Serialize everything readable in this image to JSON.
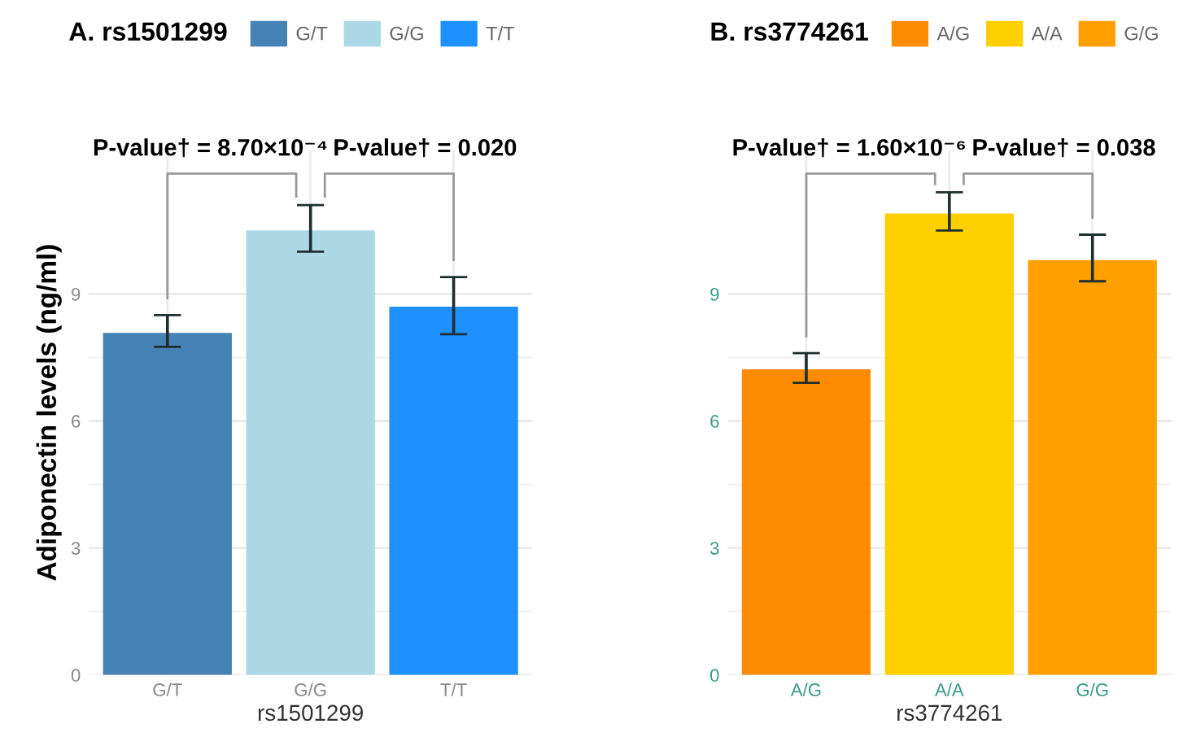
{
  "chart_data": [
    {
      "type": "bar",
      "title": "A. rs1501299",
      "xlabel": "rs1501299",
      "ylabel": "Adiponectin levels (ng/ml)",
      "categories": [
        "G/T",
        "G/G",
        "T/T"
      ],
      "ylim": [
        0,
        12.4
      ],
      "yticks": [
        0,
        3,
        6,
        9
      ],
      "grid": true,
      "legend": "top",
      "series": [
        {
          "name": "G/T",
          "color": "#4682b4",
          "values": [
            8.08,
            null,
            null
          ],
          "errors": [
            [
              7.75,
              8.5
            ],
            null,
            null
          ]
        },
        {
          "name": "G/G",
          "color": "#add8e6",
          "values": [
            null,
            10.5,
            null
          ],
          "errors": [
            null,
            [
              10.0,
              11.1
            ],
            null
          ]
        },
        {
          "name": "T/T",
          "color": "#1e90ff",
          "values": [
            null,
            null,
            8.7
          ],
          "errors": [
            null,
            null,
            [
              8.05,
              9.4
            ]
          ]
        }
      ],
      "annotations": [
        "P-value† = 8.70×10⁻⁴",
        "P-value† = 0.020"
      ]
    },
    {
      "type": "bar",
      "title": "B. rs3774261",
      "xlabel": "rs3774261",
      "categories": [
        "A/G",
        "A/A",
        "G/G"
      ],
      "ylim": [
        0,
        12.4
      ],
      "yticks": [
        0,
        3,
        6,
        9
      ],
      "grid": true,
      "legend": "top",
      "series": [
        {
          "name": "A/G",
          "color": "#ff8c00",
          "values": [
            7.22,
            null,
            null
          ],
          "errors": [
            [
              6.9,
              7.6
            ],
            null,
            null
          ]
        },
        {
          "name": "A/A",
          "color": "#ffd000",
          "values": [
            null,
            10.9,
            null
          ],
          "errors": [
            null,
            [
              10.5,
              11.4
            ],
            null
          ]
        },
        {
          "name": "G/G",
          "color": "#ffa000",
          "values": [
            null,
            null,
            9.8
          ],
          "errors": [
            null,
            null,
            [
              9.3,
              10.4
            ]
          ]
        }
      ],
      "annotations": [
        "P-value† = 1.60×10⁻⁶",
        "P-value† = 0.038"
      ]
    }
  ]
}
